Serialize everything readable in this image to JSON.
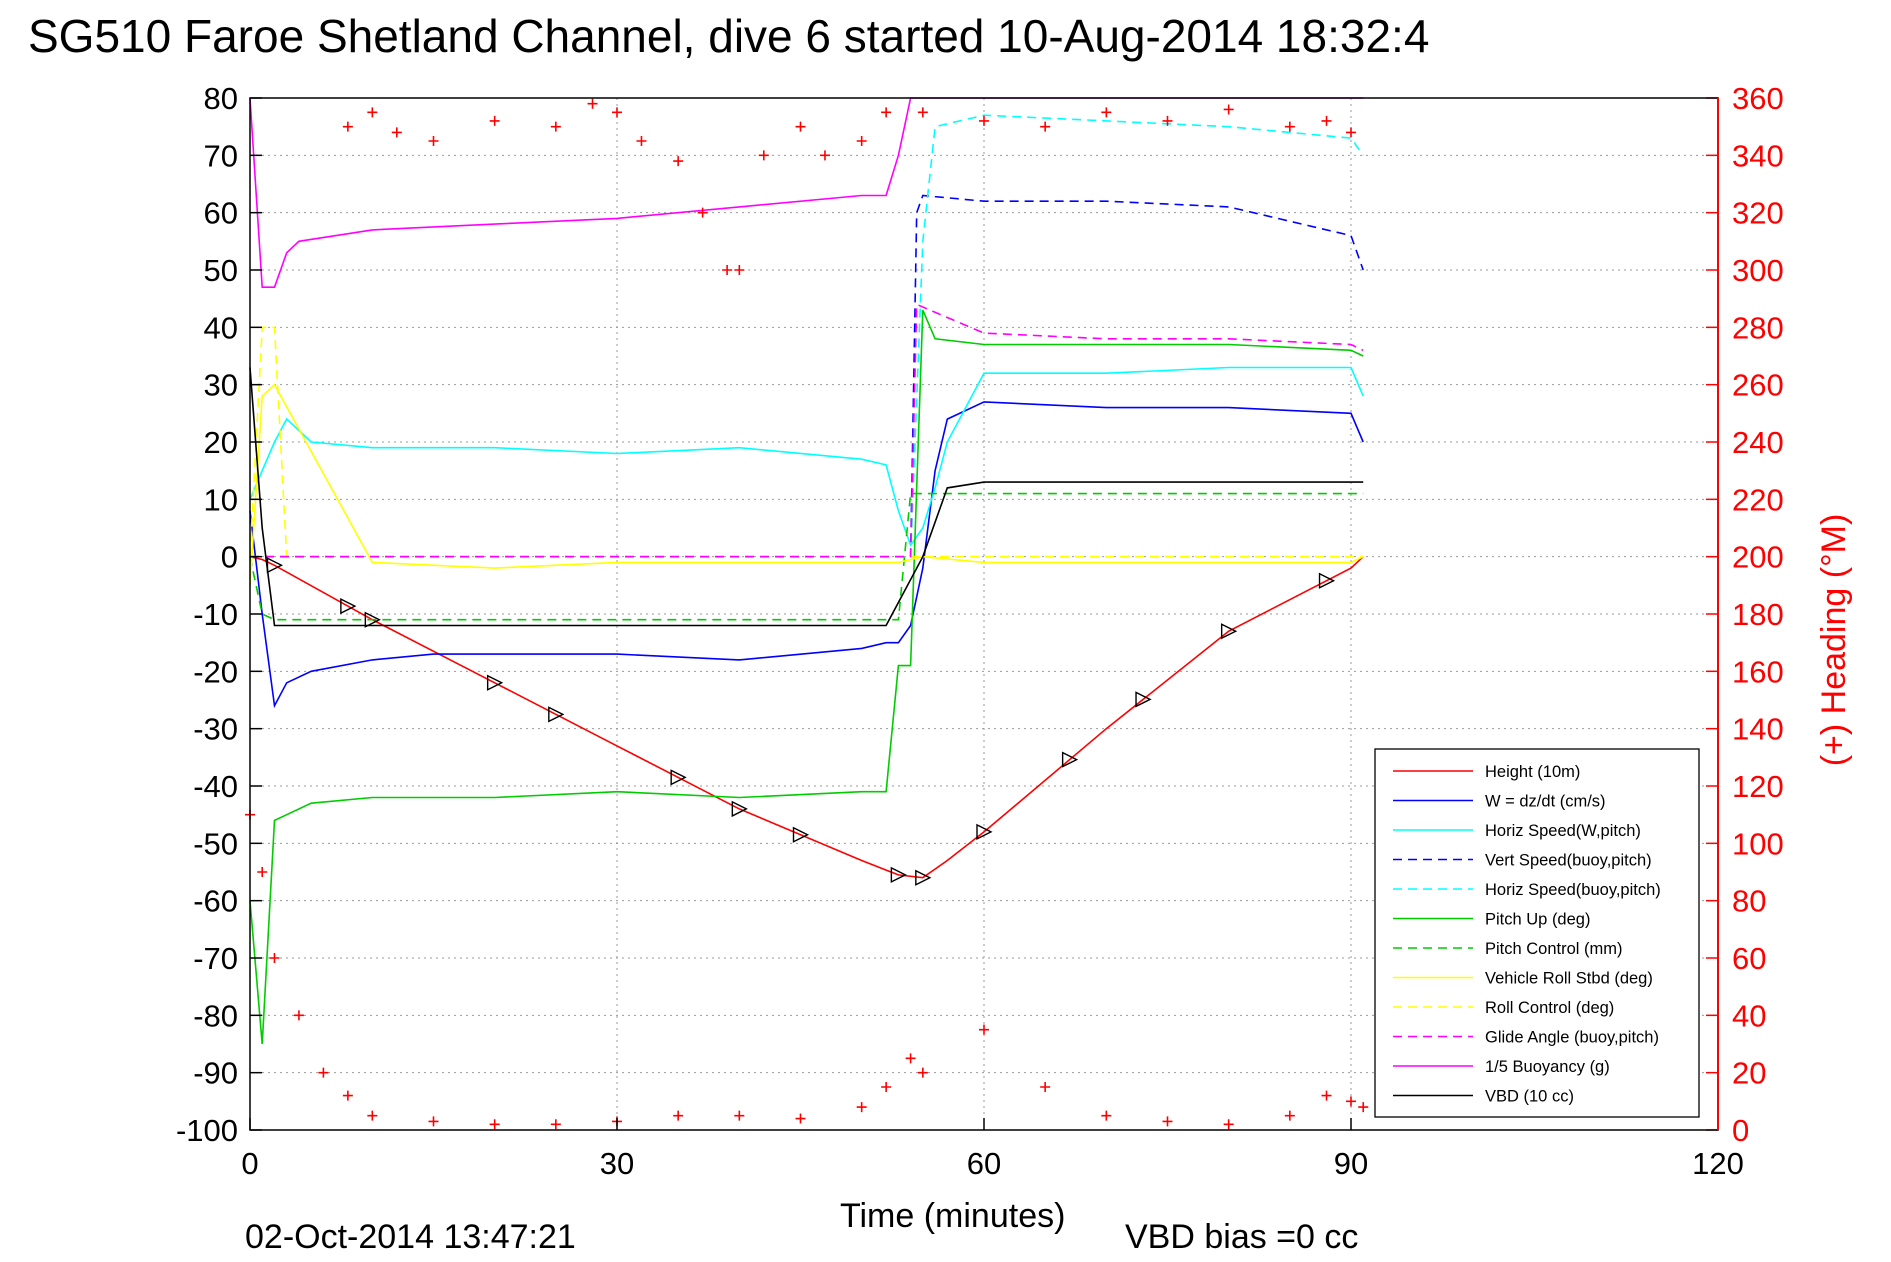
{
  "chart_data": {
    "type": "line",
    "title": "SG510 Faroe Shetland Channel, dive 6 started 10-Aug-2014 18:32:4",
    "xlabel": "Time (minutes)",
    "ylabel_right": "(+) Heading (°M)",
    "footer_left": "02-Oct-2014 13:47:21",
    "footer_right": "VBD bias =0 cc",
    "xlim": [
      0,
      120
    ],
    "ylim_left": [
      -100,
      80
    ],
    "ylim_right": [
      0,
      360
    ],
    "grid": true,
    "legend_placement": "lower-right",
    "x_ticks": [
      "0",
      "30",
      "60",
      "90",
      "120"
    ],
    "y_left_ticks": [
      "80",
      "70",
      "60",
      "50",
      "40",
      "30",
      "20",
      "10",
      "0",
      "-10",
      "-20",
      "-30",
      "-40",
      "-50",
      "-60",
      "-70",
      "-80",
      "-90",
      "-100"
    ],
    "y_right_ticks": [
      "360",
      "340",
      "320",
      "300",
      "280",
      "260",
      "240",
      "220",
      "200",
      "180",
      "160",
      "140",
      "120",
      "100",
      "80",
      "60",
      "40",
      "20",
      "0"
    ],
    "series": [
      {
        "name": "Height (10m)",
        "color": "#ff0000",
        "style": "solid",
        "axis": "left",
        "x": [
          0,
          1,
          2,
          10,
          20,
          30,
          40,
          50,
          53,
          55,
          57,
          60,
          70,
          80,
          90,
          91
        ],
        "y": [
          0,
          -0.5,
          -1.5,
          -11,
          -22,
          -33,
          -44,
          -53,
          -55.5,
          -56,
          -53,
          -48,
          -30,
          -13,
          -2,
          0
        ]
      },
      {
        "name": "W = dz/dt (cm/s)",
        "color": "#0000ff",
        "style": "solid",
        "axis": "left",
        "x": [
          0,
          1,
          2,
          3,
          5,
          10,
          15,
          20,
          30,
          40,
          50,
          52,
          53,
          54,
          55,
          56,
          57,
          60,
          70,
          80,
          90,
          91
        ],
        "y": [
          8,
          -10,
          -26,
          -22,
          -20,
          -18,
          -17,
          -17,
          -17,
          -18,
          -16,
          -15,
          -15,
          -12,
          -2,
          15,
          24,
          27,
          26,
          26,
          25,
          20
        ]
      },
      {
        "name": "Horiz Speed(W,pitch)",
        "color": "#00ffff",
        "style": "solid",
        "axis": "left",
        "x": [
          0,
          1,
          2,
          3,
          5,
          10,
          20,
          30,
          40,
          50,
          52,
          53,
          54,
          55,
          56,
          57,
          60,
          70,
          80,
          90,
          91
        ],
        "y": [
          10,
          15,
          20,
          24,
          20,
          19,
          19,
          18,
          19,
          17,
          16,
          8,
          2,
          5,
          12,
          20,
          32,
          32,
          33,
          33,
          28
        ]
      },
      {
        "name": "Vert Speed(buoy,pitch)",
        "color": "#0000ff",
        "style": "dashed",
        "axis": "left",
        "x": [
          0,
          53,
          54,
          54.5,
          55,
          60,
          70,
          80,
          90,
          91
        ],
        "y": [
          0,
          0,
          0,
          60,
          63,
          62,
          62,
          61,
          56,
          50
        ]
      },
      {
        "name": "Horiz Speed(buoy,pitch)",
        "color": "#00ffff",
        "style": "dashed",
        "axis": "left",
        "x": [
          0,
          53,
          54,
          55,
          56,
          60,
          70,
          80,
          90,
          91
        ],
        "y": [
          0,
          0,
          0,
          55,
          75,
          77,
          76,
          75,
          73,
          70
        ]
      },
      {
        "name": "Pitch Up (deg)",
        "color": "#00cc00",
        "style": "solid",
        "axis": "left",
        "x": [
          0,
          1,
          2,
          3,
          5,
          10,
          20,
          30,
          40,
          50,
          52,
          53,
          54,
          55,
          56,
          60,
          70,
          80,
          90,
          91
        ],
        "y": [
          -60,
          -85,
          -46,
          -45,
          -43,
          -42,
          -42,
          -41,
          -42,
          -41,
          -41,
          -19,
          -19,
          43,
          38,
          37,
          37,
          37,
          36,
          35
        ]
      },
      {
        "name": "Pitch Control (mm)",
        "color": "#00cc00",
        "style": "dashed",
        "axis": "left",
        "x": [
          0,
          1,
          2,
          3,
          52,
          53,
          54,
          55,
          60,
          90,
          91
        ],
        "y": [
          0,
          -10,
          -11,
          -11,
          -11,
          -11,
          11,
          11,
          11,
          11,
          11
        ]
      },
      {
        "name": "Vehicle Roll Stbd (deg)",
        "color": "#ffff00",
        "style": "solid",
        "axis": "left",
        "x": [
          0,
          1,
          2,
          10,
          20,
          30,
          40,
          50,
          53,
          55,
          60,
          70,
          80,
          90,
          91
        ],
        "y": [
          -5,
          28,
          30,
          -1,
          -2,
          -1,
          -1,
          -1,
          -1,
          0,
          -1,
          -1,
          -1,
          -1,
          0
        ]
      },
      {
        "name": "Roll Control (deg)",
        "color": "#ffff00",
        "style": "dashed",
        "axis": "left",
        "x": [
          0,
          1,
          2,
          3,
          10,
          20,
          30,
          40,
          50,
          53,
          55,
          60,
          70,
          80,
          90,
          91
        ],
        "y": [
          0,
          40,
          40,
          0,
          0,
          0,
          0,
          0,
          0,
          0,
          0,
          0,
          0,
          0,
          0,
          0
        ]
      },
      {
        "name": "Glide Angle (buoy,pitch)",
        "color": "#ff00ff",
        "style": "dashed",
        "axis": "left",
        "x": [
          0,
          54,
          54.5,
          60,
          70,
          80,
          90,
          91
        ],
        "y": [
          0,
          0,
          44,
          39,
          38,
          38,
          37,
          36
        ]
      },
      {
        "name": "1/5 Buoyancy (g)",
        "color": "#ff00ff",
        "style": "solid",
        "axis": "left",
        "x": [
          0,
          1,
          2,
          3,
          4,
          10,
          20,
          30,
          40,
          50,
          52,
          53,
          54,
          90,
          91
        ],
        "y": [
          80,
          47,
          47,
          53,
          55,
          57,
          58,
          59,
          61,
          63,
          63,
          70,
          80,
          80,
          80
        ]
      },
      {
        "name": "VBD (10 cc)",
        "color": "#000000",
        "style": "solid",
        "axis": "left",
        "x": [
          0,
          1,
          2,
          10,
          20,
          30,
          40,
          50,
          52,
          53,
          55,
          57,
          60,
          70,
          80,
          90,
          91
        ],
        "y": [
          33,
          5,
          -12,
          -12,
          -12,
          -12,
          -12,
          -12,
          -12,
          -8,
          0,
          12,
          13,
          13,
          13,
          13,
          13
        ]
      },
      {
        "name": "(+) Heading",
        "color": "#ff0000",
        "style": "markers",
        "axis": "right",
        "x": [
          0,
          1,
          2,
          4,
          6,
          8,
          10,
          15,
          20,
          25,
          30,
          35,
          40,
          45,
          50,
          52,
          54,
          55,
          60,
          65,
          70,
          75,
          80,
          85,
          88,
          90,
          91
        ],
        "y": [
          110,
          90,
          60,
          40,
          20,
          12,
          5,
          3,
          2,
          2,
          3,
          5,
          5,
          4,
          8,
          15,
          25,
          20,
          35,
          15,
          5,
          3,
          2,
          5,
          12,
          10,
          8
        ]
      },
      {
        "name": "(+) Heading (upper)",
        "color": "#ff0000",
        "style": "markers",
        "axis": "right",
        "x": [
          8,
          10,
          12,
          15,
          20,
          25,
          28,
          30,
          32,
          35,
          37,
          39,
          40,
          42,
          45,
          47,
          50,
          52,
          55,
          60,
          65,
          70,
          75,
          80,
          85,
          88,
          90
        ],
        "y": [
          350,
          355,
          348,
          345,
          352,
          350,
          358,
          355,
          345,
          338,
          320,
          300,
          300,
          340,
          350,
          340,
          345,
          355,
          355,
          352,
          350,
          355,
          352,
          356,
          350,
          352,
          348
        ]
      }
    ],
    "legend": [
      {
        "label": "Height (10m)",
        "color": "#ff0000",
        "style": "solid"
      },
      {
        "label": "W = dz/dt (cm/s)",
        "color": "#0000ff",
        "style": "solid"
      },
      {
        "label": "Horiz Speed(W,pitch)",
        "color": "#00ffff",
        "style": "solid"
      },
      {
        "label": "Vert Speed(buoy,pitch)",
        "color": "#0000ff",
        "style": "dashed"
      },
      {
        "label": "Horiz Speed(buoy,pitch)",
        "color": "#00ffff",
        "style": "dashed"
      },
      {
        "label": "Pitch Up (deg)",
        "color": "#00cc00",
        "style": "solid"
      },
      {
        "label": "Pitch Control (mm)",
        "color": "#00cc00",
        "style": "dashed"
      },
      {
        "label": "Vehicle Roll Stbd (deg)",
        "color": "#ffff00",
        "style": "solid"
      },
      {
        "label": "Roll Control (deg)",
        "color": "#ffff00",
        "style": "dashed"
      },
      {
        "label": "Glide Angle (buoy,pitch)",
        "color": "#ff00ff",
        "style": "dashed"
      },
      {
        "label": "1/5 Buoyancy (g)",
        "color": "#ff00ff",
        "style": "solid"
      },
      {
        "label": "VBD (10 cc)",
        "color": "#000000",
        "style": "solid"
      }
    ]
  }
}
